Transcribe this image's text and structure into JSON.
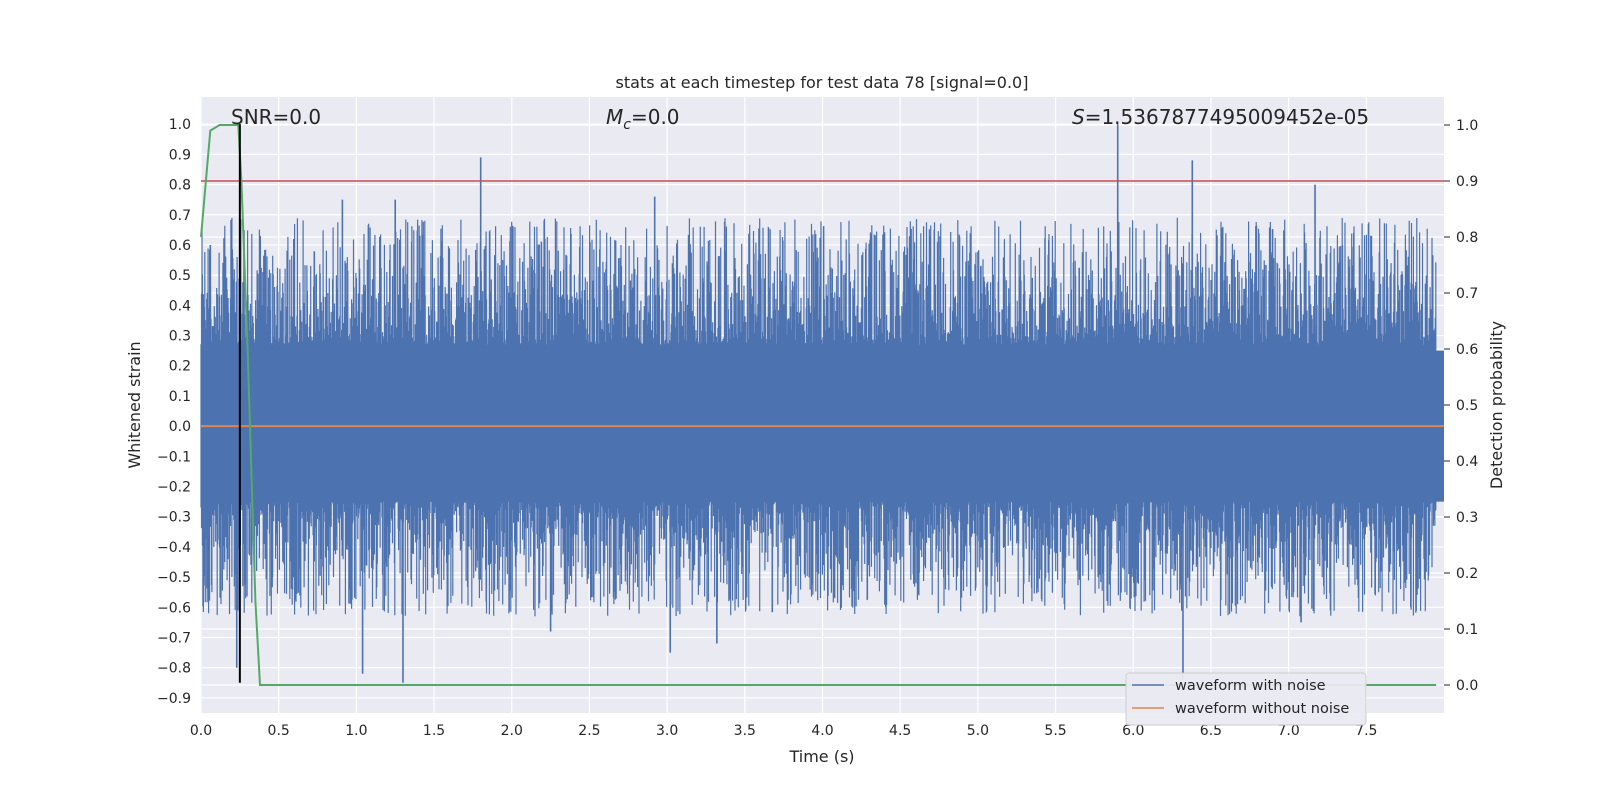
{
  "chart_data": {
    "type": "line",
    "title": "stats at each timestep for test data 78 [signal=0.0]",
    "xlabel": "Time (s)",
    "ylabel": "Whitened strain",
    "y2label": "Detection probability",
    "xlim": [
      0.0,
      8.0
    ],
    "ylim": [
      -0.95,
      1.09
    ],
    "y2lim": [
      -0.05,
      1.05
    ],
    "x_ticks": [
      "0.0",
      "0.5",
      "1.0",
      "1.5",
      "2.0",
      "2.5",
      "3.0",
      "3.5",
      "4.0",
      "4.5",
      "5.0",
      "5.5",
      "6.0",
      "6.5",
      "7.0",
      "7.5"
    ],
    "y_ticks": [
      "1.0",
      "0.9",
      "0.8",
      "0.7",
      "0.6",
      "0.5",
      "0.4",
      "0.3",
      "0.2",
      "0.1",
      "0.0",
      "−0.1",
      "−0.2",
      "−0.3",
      "−0.4",
      "−0.5",
      "−0.6",
      "−0.7",
      "−0.8",
      "−0.9"
    ],
    "y2_ticks": [
      "1.0",
      "0.9",
      "0.8",
      "0.7",
      "0.6",
      "0.5",
      "0.4",
      "0.3",
      "0.2",
      "0.1",
      "0.0"
    ],
    "grid": true,
    "annotations": {
      "snr": "SNR=0.0",
      "mc_symbol": "M",
      "mc_sub": "c",
      "mc_value": "=0.0",
      "s_symbol": "S",
      "s_value": "=1.5367877495009452e-05"
    },
    "threshold_line": {
      "axis": "y2",
      "value": 0.9,
      "color": "#c44e52"
    },
    "marker_line": {
      "x": 0.25,
      "y_from": -0.85,
      "y_to": 1.0,
      "color": "#000000"
    },
    "series": [
      {
        "name": "waveform with noise",
        "color": "#4c72b0",
        "description": "dense noise, envelope roughly ±0.45 with spikes up to 1.0 / -0.85",
        "spikes": [
          {
            "x": 0.06,
            "y": 0.6
          },
          {
            "x": 0.23,
            "y": -0.8
          },
          {
            "x": 0.91,
            "y": 0.75
          },
          {
            "x": 1.04,
            "y": -0.82
          },
          {
            "x": 1.25,
            "y": 0.75
          },
          {
            "x": 1.3,
            "y": -0.85
          },
          {
            "x": 1.8,
            "y": 0.89
          },
          {
            "x": 2.25,
            "y": -0.68
          },
          {
            "x": 2.92,
            "y": 0.76
          },
          {
            "x": 3.02,
            "y": -0.75
          },
          {
            "x": 3.32,
            "y": -0.72
          },
          {
            "x": 5.9,
            "y": 1.0
          },
          {
            "x": 6.32,
            "y": -0.84
          },
          {
            "x": 6.38,
            "y": 0.88
          },
          {
            "x": 7.17,
            "y": 0.8
          },
          {
            "x": 7.08,
            "y": -0.65
          }
        ]
      },
      {
        "name": "waveform without noise",
        "color": "#dd8452",
        "value": 0.0
      },
      {
        "name": "detection probability",
        "axis": "y2",
        "color": "#55a868",
        "x": [
          0.0,
          0.06,
          0.12,
          0.18,
          0.24,
          0.26,
          0.3,
          0.35,
          0.38,
          7.95
        ],
        "values": [
          0.8,
          0.99,
          1.0,
          1.0,
          1.0,
          0.9,
          0.6,
          0.15,
          0.0,
          0.0
        ]
      }
    ],
    "legend": {
      "location": "bottom-right",
      "entries": [
        {
          "label": "waveform with noise",
          "color": "#4c72b0"
        },
        {
          "label": "waveform without noise",
          "color": "#dd8452"
        }
      ]
    }
  }
}
